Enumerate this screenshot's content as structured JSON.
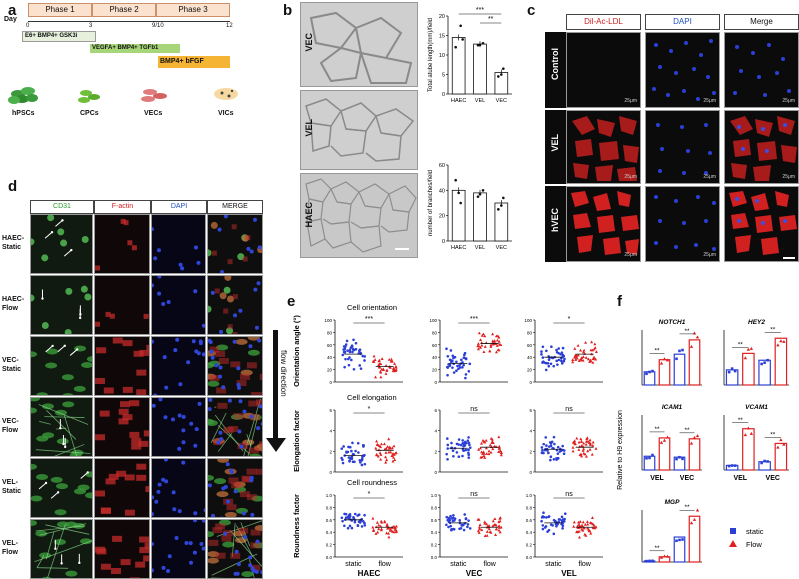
{
  "panel_letters": {
    "a": "a",
    "b": "b",
    "c": "c",
    "d": "d",
    "e": "e",
    "f": "f"
  },
  "panel_a": {
    "day_label": "Day",
    "phases": [
      "Phase 1",
      "Phase 2",
      "Phase 3"
    ],
    "days": [
      "0",
      "3",
      "9/10",
      "12"
    ],
    "media": [
      "E6+ BMP4+ GSK3i",
      "VEGFA+ BMP4+ TGFb1",
      "BMP4+ bFGF"
    ],
    "cells": [
      "hPSCs",
      "CPCs",
      "VECs",
      "VICs"
    ],
    "colors": {
      "phase_fill": "#fbe2cf",
      "medium1": "#e6f0dc",
      "medium2": "#a6d57a",
      "medium3": "#f5b433",
      "cell_green": "#3c9a3c"
    }
  },
  "panel_b": {
    "image_labels": [
      "VEC",
      "VEL",
      "HAEC"
    ],
    "chart1_ylabel": "Total atube length(mm)/field",
    "chart2_ylabel": "number of branches/field",
    "chart1_ticks": [
      "0",
      "5",
      "10",
      "15",
      "20"
    ],
    "chart2_ticks": [
      "0",
      "20",
      "40",
      "60"
    ],
    "chart1_sig": [
      "***",
      "**"
    ],
    "categories": [
      "HAEC",
      "VEL",
      "VEC"
    ]
  },
  "panel_c": {
    "headers": [
      "Dil-Ac-LDL",
      "DAPI",
      "Merge"
    ],
    "rows": [
      "Control",
      "VEL",
      "hVEC"
    ],
    "scale_text": "25μm"
  },
  "panel_d": {
    "headers": [
      "CD31",
      "F-actin",
      "DAPI",
      "MERGE"
    ],
    "rows": [
      "HAEC-\nStatic",
      "HAEC-\nFlow",
      "VEC-\nStatic",
      "VEC-\nFlow",
      "VEL-\nStatic",
      "VEL-\nFlow"
    ],
    "flow_label": "flow direction"
  },
  "panel_e": {
    "row_titles": [
      "Cell orientation",
      "Cell elongation",
      "Cell roundness"
    ],
    "ylabels": [
      "Orientation angle (°)",
      "Elongation factor",
      "Roundness factor"
    ],
    "col_labels": [
      "HAEC",
      "VEC",
      "VEL"
    ],
    "x_ticks": [
      "static",
      "flow"
    ],
    "significance": [
      [
        "***",
        "***",
        "*"
      ],
      [
        "*",
        "ns",
        "ns"
      ],
      [
        "*",
        "ns",
        "ns"
      ]
    ],
    "y_ticks_row1": [
      "0",
      "20",
      "40",
      "60",
      "80",
      "100"
    ],
    "y_ticks_row2": [
      "0",
      "2",
      "4",
      "6"
    ],
    "y_ticks_row3": [
      "0.0",
      "0.2",
      "0.4",
      "0.6",
      "0.8",
      "1.0"
    ],
    "y_ticks_row3_vel": [
      "0.0",
      "0.2",
      "0.4",
      "0.6",
      "0.8",
      "1.0"
    ]
  },
  "panel_f": {
    "genes": [
      "NOTCH1",
      "HEY2",
      "ICAM1",
      "VCAM1",
      "MGP"
    ],
    "ylabel": "Relative to H9 expression",
    "x_groups": [
      "VEL",
      "VEC"
    ],
    "significance": "**",
    "legend": [
      {
        "label": "static",
        "color": "#2b3fd6"
      },
      {
        "label": "Flow",
        "color": "#e02020"
      }
    ]
  },
  "chart_data": [
    {
      "type": "bar",
      "title": "",
      "categories": [
        "HAEC",
        "VEL",
        "VEC"
      ],
      "values": [
        14.5,
        12.8,
        5.5
      ],
      "ylabel": "Total atube length(mm)/field",
      "ylim": [
        0,
        20
      ]
    },
    {
      "type": "bar",
      "title": "",
      "categories": [
        "HAEC",
        "VEL",
        "VEC"
      ],
      "values": [
        40,
        38,
        30
      ],
      "ylabel": "number of branches/field",
      "ylim": [
        0,
        60
      ]
    }
  ]
}
